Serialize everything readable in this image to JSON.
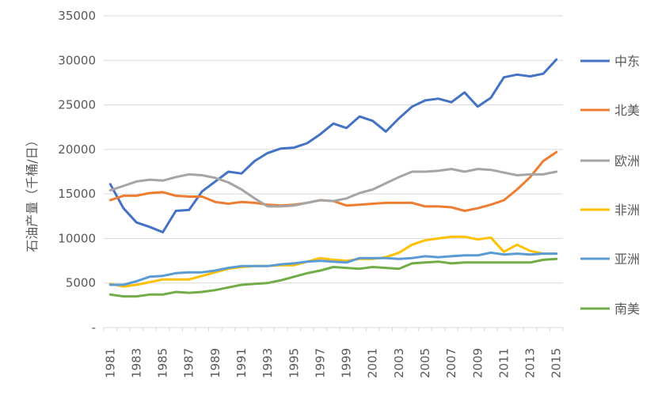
{
  "chart_data": {
    "type": "line",
    "title": "",
    "xlabel": "",
    "ylabel": "石油产量（千桶/日）",
    "ylim": [
      0,
      35000
    ],
    "y_ticks": [
      {
        "value": 0,
        "label": "-"
      },
      {
        "value": 5000,
        "label": "5000"
      },
      {
        "value": 10000,
        "label": "10000"
      },
      {
        "value": 15000,
        "label": "15000"
      },
      {
        "value": 20000,
        "label": "20000"
      },
      {
        "value": 25000,
        "label": "25000"
      },
      {
        "value": 30000,
        "label": "30000"
      },
      {
        "value": 35000,
        "label": "35000"
      }
    ],
    "grid": "horizontal",
    "legend_position": "right",
    "x": [
      1981,
      1982,
      1983,
      1984,
      1985,
      1986,
      1987,
      1988,
      1989,
      1990,
      1991,
      1992,
      1993,
      1994,
      1995,
      1996,
      1997,
      1998,
      1999,
      2000,
      2001,
      2002,
      2003,
      2004,
      2005,
      2006,
      2007,
      2008,
      2009,
      2010,
      2011,
      2012,
      2013,
      2014,
      2015
    ],
    "x_tick_labels": [
      "1981",
      "1983",
      "1985",
      "1987",
      "1989",
      "1991",
      "1993",
      "1995",
      "1997",
      "1999",
      "2001",
      "2003",
      "2005",
      "2007",
      "2009",
      "2011",
      "2013",
      "2015"
    ],
    "series": [
      {
        "name": "中东",
        "color": "#4472c4",
        "values": [
          16100,
          13400,
          11800,
          11300,
          10700,
          13100,
          13200,
          15300,
          16400,
          17500,
          17300,
          18700,
          19600,
          20100,
          20200,
          20700,
          21700,
          22900,
          22400,
          23700,
          23200,
          22000,
          23500,
          24800,
          25500,
          25700,
          25300,
          26400,
          24800,
          25800,
          28100,
          28400,
          28200,
          28500,
          30100
        ]
      },
      {
        "name": "北美",
        "color": "#ed7d31",
        "values": [
          14300,
          14800,
          14800,
          15100,
          15200,
          14800,
          14700,
          14700,
          14100,
          13900,
          14100,
          14000,
          13800,
          13700,
          13800,
          14000,
          14300,
          14200,
          13700,
          13800,
          13900,
          14000,
          14000,
          14000,
          13600,
          13600,
          13500,
          13100,
          13400,
          13800,
          14300,
          15500,
          16900,
          18700,
          19700
        ]
      },
      {
        "name": "欧洲",
        "color": "#a5a5a5",
        "values": [
          15400,
          15900,
          16400,
          16600,
          16500,
          16900,
          17200,
          17100,
          16800,
          16300,
          15500,
          14500,
          13600,
          13600,
          13700,
          14000,
          14300,
          14200,
          14500,
          15100,
          15500,
          16200,
          16900,
          17500,
          17500,
          17600,
          17800,
          17500,
          17800,
          17700,
          17400,
          17100,
          17200,
          17200,
          17500
        ]
      },
      {
        "name": "非洲",
        "color": "#ffc000",
        "values": [
          4900,
          4600,
          4800,
          5100,
          5400,
          5400,
          5400,
          5800,
          6200,
          6600,
          6800,
          6900,
          6900,
          7000,
          7000,
          7400,
          7800,
          7600,
          7500,
          7700,
          7700,
          7900,
          8400,
          9300,
          9800,
          10000,
          10200,
          10200,
          9900,
          10100,
          8500,
          9300,
          8600,
          8300,
          8300
        ]
      },
      {
        "name": "亚洲",
        "color": "#5b9bd5",
        "values": [
          4800,
          4800,
          5200,
          5700,
          5800,
          6100,
          6200,
          6200,
          6400,
          6700,
          6900,
          6900,
          6900,
          7100,
          7200,
          7400,
          7500,
          7400,
          7300,
          7800,
          7800,
          7800,
          7700,
          7800,
          8000,
          7900,
          8000,
          8100,
          8100,
          8400,
          8200,
          8300,
          8200,
          8300,
          8300
        ]
      },
      {
        "name": "南美",
        "color": "#70ad47",
        "values": [
          3700,
          3500,
          3500,
          3700,
          3700,
          4000,
          3900,
          4000,
          4200,
          4500,
          4800,
          4900,
          5000,
          5300,
          5700,
          6100,
          6400,
          6800,
          6700,
          6600,
          6800,
          6700,
          6600,
          7200,
          7300,
          7400,
          7200,
          7300,
          7300,
          7300,
          7300,
          7300,
          7300,
          7600,
          7700
        ]
      }
    ]
  }
}
